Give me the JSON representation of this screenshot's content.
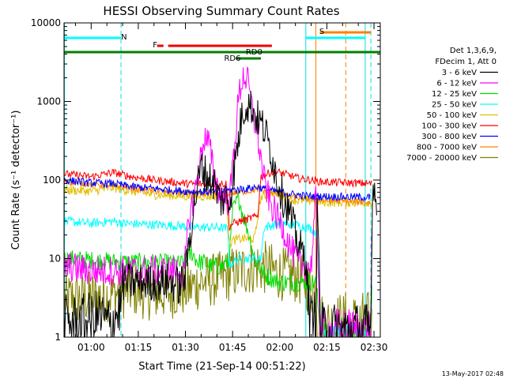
{
  "chart_data": {
    "type": "line",
    "title": "HESSI Observing Summary Count Rates",
    "xlabel": "Start Time (21-Sep-14 00:51:22)",
    "ylabel": "Count Rate (s⁻¹ detector⁻¹)",
    "yscale": "log",
    "ylim": [
      1,
      10000
    ],
    "xlim_minutes": [
      51.37,
      152.0
    ],
    "x_ticks": [
      {
        "m": 60,
        "label": "01:00"
      },
      {
        "m": 75,
        "label": "01:15"
      },
      {
        "m": 90,
        "label": "01:30"
      },
      {
        "m": 105,
        "label": "01:45"
      },
      {
        "m": 120,
        "label": "02:00"
      },
      {
        "m": 135,
        "label": "02:15"
      },
      {
        "m": 150,
        "label": "02:30"
      }
    ],
    "y_ticks": [
      {
        "v": 1,
        "label": "1"
      },
      {
        "v": 10,
        "label": "10"
      },
      {
        "v": 100,
        "label": "100"
      },
      {
        "v": 1000,
        "label": "1000"
      },
      {
        "v": 10000,
        "label": "10000"
      }
    ],
    "legend_header": [
      "Det 1,3,6,9,",
      "FDecim 1, Att 0"
    ],
    "legend_placement": "right",
    "timestamp": "13-May-2017 02:48",
    "flag_labels": {
      "N": "N",
      "S": "S",
      "F": "F",
      "RD0": "RD0",
      "RD6": "RD6"
    },
    "flags": {
      "night": [
        [
          51.37,
          69.5
        ]
      ],
      "saa": [
        [
          132.8,
          149.0
        ]
      ],
      "flare_pieces": [
        [
          81.0,
          83.0
        ],
        [
          84.5,
          117.5
        ]
      ],
      "rd0_top": [
        [
          95.0,
          103.5
        ]
      ],
      "rd0_mid": [
        [
          107.5,
          115.0
        ]
      ],
      "rd6": [
        [
          106.0,
          114.0
        ]
      ],
      "att_line": [
        [
          51.37,
          152.0
        ]
      ],
      "night_edges_cyan": [
        51.5,
        128.3,
        147.2
      ],
      "night_edges_dashed": [
        69.5,
        149.0
      ],
      "saa_edges_orange": [
        131.5
      ],
      "saa_edges_dashed": [
        141.0
      ]
    },
    "series": [
      {
        "name": "3 - 6 keV",
        "color": "#000000",
        "noise": 0.25,
        "points": [
          [
            51.4,
            1.5
          ],
          [
            57,
            1.5
          ],
          [
            63,
            1.8
          ],
          [
            66,
            1.4
          ],
          [
            69.5,
            2.5
          ],
          [
            70,
            5.0
          ],
          [
            80,
            5.0
          ],
          [
            85,
            5.0
          ],
          [
            88,
            4.5
          ],
          [
            90,
            6
          ],
          [
            91,
            15
          ],
          [
            93,
            55
          ],
          [
            95,
            150
          ],
          [
            97,
            110
          ],
          [
            99,
            95
          ],
          [
            101,
            55
          ],
          [
            103,
            60
          ],
          [
            104,
            50
          ],
          [
            105,
            100
          ],
          [
            107,
            350
          ],
          [
            108,
            700
          ],
          [
            109.5,
            950
          ],
          [
            111,
            850
          ],
          [
            113,
            600
          ],
          [
            115,
            450
          ],
          [
            117,
            250
          ],
          [
            119,
            110
          ],
          [
            121,
            60
          ],
          [
            123,
            40
          ],
          [
            125,
            20
          ],
          [
            127,
            12
          ],
          [
            128.5,
            10
          ],
          [
            129,
            3
          ],
          [
            130,
            1.5
          ],
          [
            131.5,
            2
          ],
          [
            132,
            60
          ],
          [
            133,
            1.2
          ],
          [
            149,
            1.2
          ],
          [
            149.5,
            90
          ],
          [
            151,
            60
          ]
        ]
      },
      {
        "name": "6 - 12 keV",
        "color": "#ff00ff",
        "noise": 0.2,
        "points": [
          [
            51.4,
            8
          ],
          [
            60,
            7
          ],
          [
            70,
            7
          ],
          [
            80,
            7
          ],
          [
            88,
            7
          ],
          [
            89.5,
            6
          ],
          [
            91,
            30
          ],
          [
            93,
            70
          ],
          [
            96,
            350
          ],
          [
            97.5,
            300
          ],
          [
            99,
            120
          ],
          [
            101,
            65
          ],
          [
            103,
            60
          ],
          [
            104,
            50
          ],
          [
            105,
            150
          ],
          [
            107,
            1200
          ],
          [
            108.5,
            2200
          ],
          [
            110,
            1700
          ],
          [
            111,
            900
          ],
          [
            113,
            350
          ],
          [
            115,
            100
          ],
          [
            117,
            50
          ],
          [
            119,
            35
          ],
          [
            121,
            25
          ],
          [
            123,
            15
          ],
          [
            125,
            10
          ],
          [
            127,
            8
          ],
          [
            130,
            8
          ],
          [
            131.5,
            60
          ],
          [
            132.5,
            4
          ],
          [
            133,
            1.2
          ],
          [
            149,
            1.2
          ],
          [
            149.5,
            90
          ]
        ]
      },
      {
        "name": "12 - 25 keV",
        "color": "#00dd00",
        "noise": 0.12,
        "points": [
          [
            51.4,
            10
          ],
          [
            60,
            9.5
          ],
          [
            70,
            9
          ],
          [
            80,
            9
          ],
          [
            88,
            8.5
          ],
          [
            90,
            9
          ],
          [
            92,
            12
          ],
          [
            94,
            9
          ],
          [
            96,
            9
          ],
          [
            98,
            8
          ],
          [
            100,
            8
          ],
          [
            102,
            8
          ],
          [
            104,
            10
          ],
          [
            105,
            40
          ],
          [
            107,
            60
          ],
          [
            108,
            40
          ],
          [
            110,
            22
          ],
          [
            112,
            10
          ],
          [
            114,
            7
          ],
          [
            116,
            6
          ],
          [
            120,
            5
          ],
          [
            125,
            5
          ],
          [
            130,
            5
          ],
          [
            131.5,
            5
          ],
          [
            132,
            3
          ],
          [
            133,
            1.2
          ],
          [
            149,
            1.2
          ],
          [
            149.5,
            8
          ]
        ]
      },
      {
        "name": "25 - 50 keV",
        "color": "#00ffff",
        "noise": 0.06,
        "points": [
          [
            51.4,
            30
          ],
          [
            60,
            28
          ],
          [
            67,
            30
          ],
          [
            70,
            28
          ],
          [
            80,
            27
          ],
          [
            89,
            26
          ],
          [
            91,
            25
          ],
          [
            96,
            25
          ],
          [
            100,
            25
          ],
          [
            103.5,
            24
          ],
          [
            104,
            8
          ],
          [
            105,
            9
          ],
          [
            107,
            10
          ],
          [
            110,
            10
          ],
          [
            114,
            10
          ],
          [
            115,
            25
          ],
          [
            120,
            28
          ],
          [
            125,
            27
          ],
          [
            130,
            24
          ],
          [
            132,
            20
          ],
          [
            133,
            1.2
          ],
          [
            149,
            1.2
          ],
          [
            149.5,
            50
          ]
        ]
      },
      {
        "name": "50 - 100 keV",
        "color": "#e0c000",
        "noise": 0.06,
        "points": [
          [
            51.4,
            75
          ],
          [
            60,
            72
          ],
          [
            67,
            80
          ],
          [
            73,
            72
          ],
          [
            80,
            65
          ],
          [
            90,
            62
          ],
          [
            98,
            62
          ],
          [
            103,
            62
          ],
          [
            104,
            15
          ],
          [
            105,
            17
          ],
          [
            108,
            18
          ],
          [
            110,
            18
          ],
          [
            112,
            18
          ],
          [
            114,
            60
          ],
          [
            118,
            70
          ],
          [
            122,
            60
          ],
          [
            125,
            55
          ],
          [
            130,
            55
          ],
          [
            133,
            52
          ],
          [
            149,
            52
          ],
          [
            149.5,
            55
          ]
        ]
      },
      {
        "name": "100 - 300 keV",
        "color": "#ff0000",
        "noise": 0.05,
        "points": [
          [
            51.4,
            120
          ],
          [
            60,
            110
          ],
          [
            67,
            125
          ],
          [
            73,
            110
          ],
          [
            80,
            100
          ],
          [
            90,
            90
          ],
          [
            98,
            88
          ],
          [
            103,
            90
          ],
          [
            104,
            25
          ],
          [
            105,
            28
          ],
          [
            110,
            32
          ],
          [
            113,
            35
          ],
          [
            114,
            110
          ],
          [
            117,
            125
          ],
          [
            120,
            125
          ],
          [
            123,
            115
          ],
          [
            126,
            105
          ],
          [
            130,
            100
          ],
          [
            133,
            95
          ],
          [
            149,
            90
          ],
          [
            149.5,
            90
          ]
        ]
      },
      {
        "name": "300 - 800 keV",
        "color": "#0000ff",
        "noise": 0.05,
        "points": [
          [
            51.4,
            100
          ],
          [
            60,
            92
          ],
          [
            67,
            90
          ],
          [
            73,
            82
          ],
          [
            80,
            78
          ],
          [
            90,
            72
          ],
          [
            100,
            70
          ],
          [
            105,
            75
          ],
          [
            110,
            78
          ],
          [
            113,
            82
          ],
          [
            116,
            75
          ],
          [
            120,
            70
          ],
          [
            125,
            65
          ],
          [
            130,
            62
          ],
          [
            133,
            62
          ],
          [
            149,
            60
          ]
        ]
      },
      {
        "name": "800 - 7000 keV",
        "color": "#ff8000",
        "noise": 0.04,
        "points": [
          [
            51.4,
            95
          ],
          [
            60,
            88
          ],
          [
            67,
            85
          ],
          [
            73,
            78
          ],
          [
            80,
            72
          ],
          [
            90,
            68
          ],
          [
            100,
            66
          ],
          [
            105,
            68
          ],
          [
            110,
            72
          ],
          [
            113,
            76
          ],
          [
            116,
            70
          ],
          [
            120,
            65
          ],
          [
            125,
            60
          ],
          [
            130,
            57
          ],
          [
            133,
            55
          ],
          [
            149,
            52
          ]
        ]
      },
      {
        "name": "7000 - 20000 keV",
        "color": "#808000",
        "noise": 0.35,
        "points": [
          [
            51.4,
            3
          ],
          [
            60,
            3.2
          ],
          [
            67,
            3.5
          ],
          [
            73,
            4
          ],
          [
            80,
            3.5
          ],
          [
            90,
            4
          ],
          [
            95,
            5
          ],
          [
            100,
            5.5
          ],
          [
            103,
            6
          ],
          [
            105,
            6.5
          ],
          [
            110,
            7.5
          ],
          [
            113,
            8
          ],
          [
            116,
            7.5
          ],
          [
            120,
            6.5
          ],
          [
            125,
            6
          ],
          [
            128,
            5
          ],
          [
            130,
            4
          ],
          [
            131.5,
            4
          ],
          [
            132,
            2
          ],
          [
            133,
            1.2
          ],
          [
            149,
            1.2
          ],
          [
            149.5,
            4
          ]
        ]
      }
    ]
  }
}
